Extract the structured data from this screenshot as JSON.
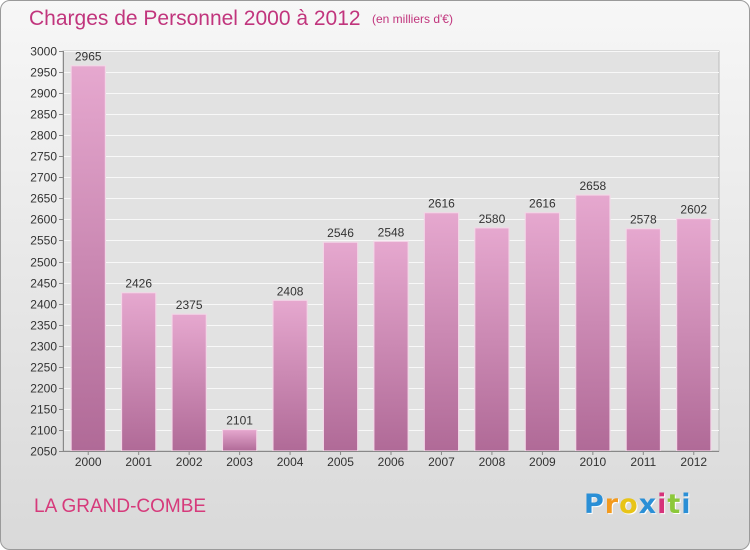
{
  "chart_data": {
    "type": "bar",
    "title": "Charges de Personnel 2000 à 2012",
    "subtitle": "(en milliers d'€)",
    "categories": [
      "2000",
      "2001",
      "2002",
      "2003",
      "2004",
      "2005",
      "2006",
      "2007",
      "2008",
      "2009",
      "2010",
      "2011",
      "2012"
    ],
    "values": [
      2965,
      2426,
      2375,
      2101,
      2408,
      2546,
      2548,
      2616,
      2580,
      2616,
      2658,
      2578,
      2602
    ],
    "ylim": [
      2050,
      3000
    ],
    "ytick_step": 50,
    "grid": true,
    "xlabel": "",
    "ylabel": "",
    "bar_color": "#d98ab8",
    "label_color": "#333333"
  },
  "footer": {
    "city": "LA GRAND-COMBE",
    "logo_letters": [
      "P",
      "r",
      "o",
      "x",
      "i",
      "t",
      "i"
    ],
    "logo_colors": [
      "#2a8fd6",
      "#f39a1d",
      "#e8c417",
      "#2a8fd6",
      "#d6327a",
      "#8cc83a",
      "#2a8fd6"
    ]
  }
}
